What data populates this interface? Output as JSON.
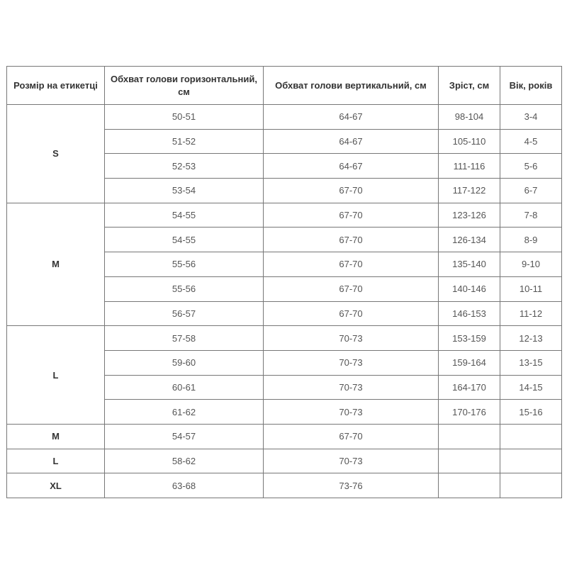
{
  "headers": [
    "Розмір на етикетці",
    "Обхват голови горизонтальний, см",
    "Обхват голови вертикальний, см",
    "Зріст, см",
    "Вік, років"
  ],
  "groups": [
    {
      "size": "S",
      "rows": [
        [
          "50-51",
          "64-67",
          "98-104",
          "3-4"
        ],
        [
          "51-52",
          "64-67",
          "105-110",
          "4-5"
        ],
        [
          "52-53",
          "64-67",
          "111-116",
          "5-6"
        ],
        [
          "53-54",
          "67-70",
          "117-122",
          "6-7"
        ]
      ]
    },
    {
      "size": "M",
      "rows": [
        [
          "54-55",
          "67-70",
          "123-126",
          "7-8"
        ],
        [
          "54-55",
          "67-70",
          "126-134",
          "8-9"
        ],
        [
          "55-56",
          "67-70",
          "135-140",
          "9-10"
        ],
        [
          "55-56",
          "67-70",
          "140-146",
          "10-11"
        ],
        [
          "56-57",
          "67-70",
          "146-153",
          "11-12"
        ]
      ]
    },
    {
      "size": "L",
      "rows": [
        [
          "57-58",
          "70-73",
          "153-159",
          "12-13"
        ],
        [
          "59-60",
          "70-73",
          "159-164",
          "13-15"
        ],
        [
          "60-61",
          "70-73",
          "164-170",
          "14-15"
        ],
        [
          "61-62",
          "70-73",
          "170-176",
          "15-16"
        ]
      ]
    },
    {
      "size": "M",
      "rows": [
        [
          "54-57",
          "67-70",
          "",
          ""
        ]
      ]
    },
    {
      "size": "L",
      "rows": [
        [
          "58-62",
          "70-73",
          "",
          ""
        ]
      ]
    },
    {
      "size": "XL",
      "rows": [
        [
          "63-68",
          "73-76",
          "",
          ""
        ]
      ]
    }
  ]
}
